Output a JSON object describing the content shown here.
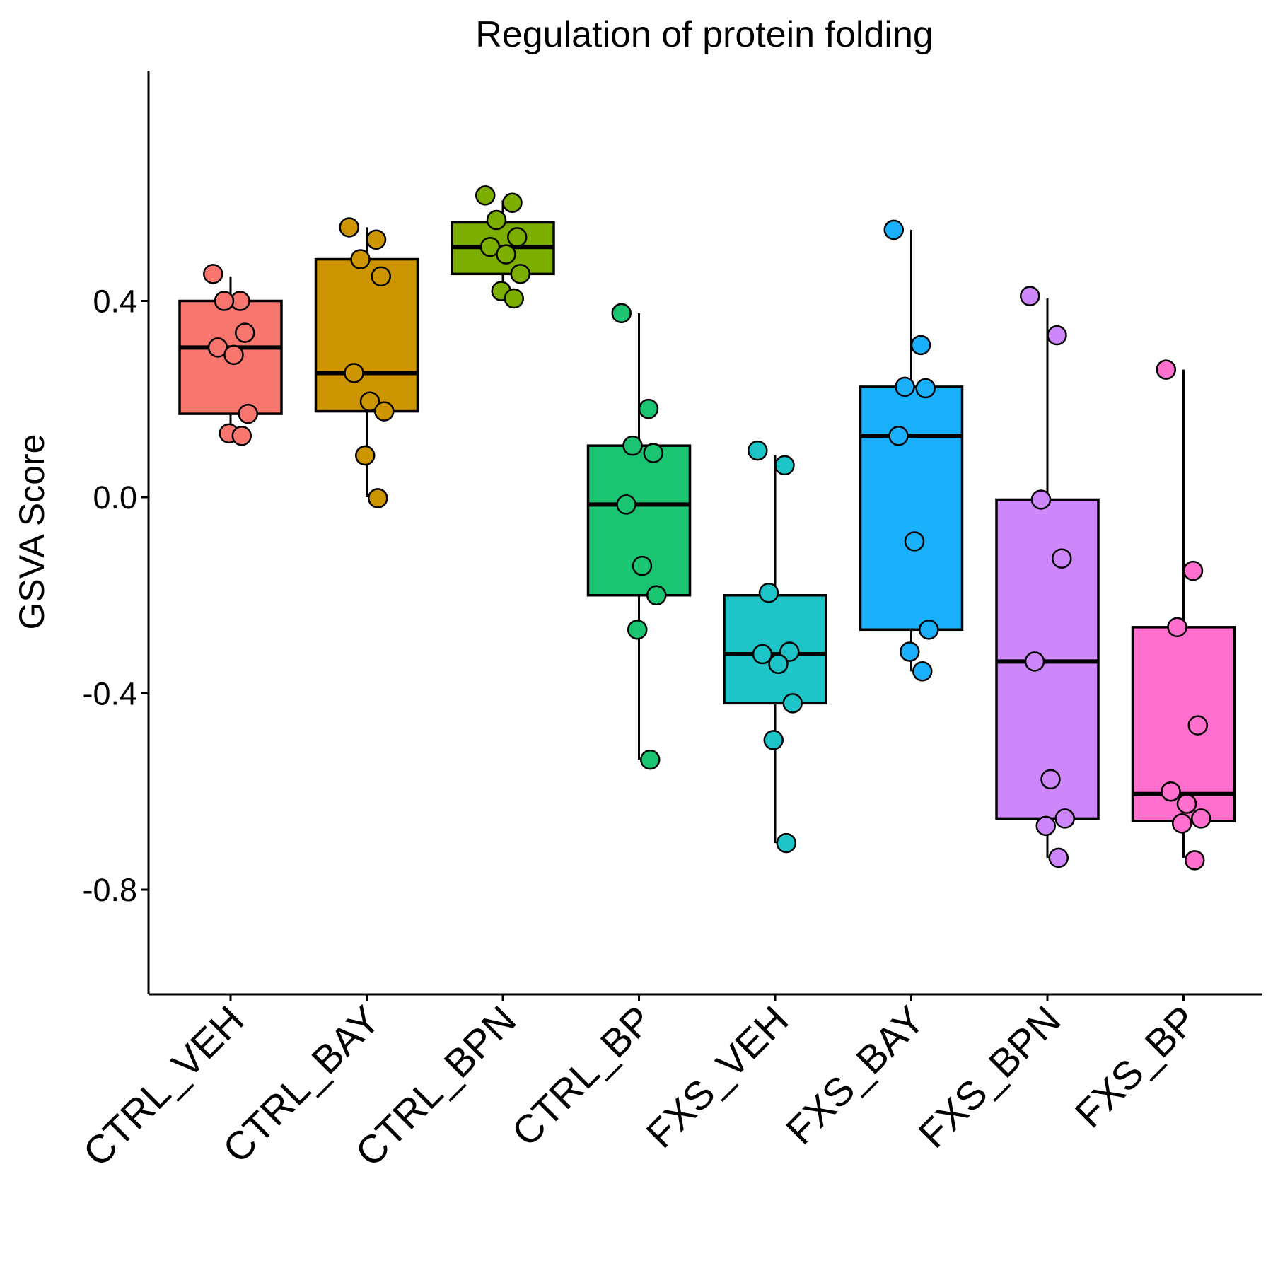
{
  "chart_data": {
    "type": "box",
    "title": "Regulation of protein folding",
    "xlabel": "",
    "ylabel": "GSVA Score",
    "ylim": [
      -0.8,
      0.68
    ],
    "yticks": [
      {
        "value": -0.8,
        "label": "-0.8"
      },
      {
        "value": -0.4,
        "label": "-0.4"
      },
      {
        "value": 0.0,
        "label": "0.0"
      },
      {
        "value": 0.4,
        "label": "0.4"
      }
    ],
    "grid": false,
    "legend": "none",
    "groups": [
      {
        "name": "CTRL_VEH",
        "color": "#F8766D",
        "q1": 0.17,
        "median": 0.305,
        "q3": 0.4,
        "whisker_low": 0.13,
        "whisker_high": 0.45,
        "points": [
          0.455,
          0.4,
          0.4,
          0.335,
          0.305,
          0.29,
          0.17,
          0.13,
          0.125
        ]
      },
      {
        "name": "CTRL_BAY",
        "color": "#CD9600",
        "q1": 0.175,
        "median": 0.253,
        "q3": 0.485,
        "whisker_low": 0.0,
        "whisker_high": 0.55,
        "points": [
          0.55,
          0.525,
          0.485,
          0.45,
          0.253,
          0.195,
          0.175,
          0.085,
          -0.002
        ]
      },
      {
        "name": "CTRL_BPN",
        "color": "#7CAE00",
        "q1": 0.455,
        "median": 0.51,
        "q3": 0.56,
        "whisker_low": 0.405,
        "whisker_high": 0.605,
        "points": [
          0.615,
          0.6,
          0.565,
          0.53,
          0.51,
          0.495,
          0.455,
          0.42,
          0.405
        ]
      },
      {
        "name": "CTRL_BP",
        "color": "#1BC470",
        "q1": -0.2,
        "median": -0.015,
        "q3": 0.105,
        "whisker_low": -0.535,
        "whisker_high": 0.375,
        "points": [
          0.375,
          0.18,
          0.105,
          0.09,
          -0.015,
          -0.14,
          -0.2,
          -0.27,
          -0.535
        ]
      },
      {
        "name": "FXS_VEH",
        "color": "#1DC4C8",
        "q1": -0.42,
        "median": -0.32,
        "q3": -0.2,
        "whisker_low": -0.705,
        "whisker_high": 0.085,
        "points": [
          0.095,
          0.065,
          -0.195,
          -0.315,
          -0.32,
          -0.34,
          -0.42,
          -0.495,
          -0.705
        ]
      },
      {
        "name": "FXS_BAY",
        "color": "#1AB0FC",
        "q1": -0.27,
        "median": 0.125,
        "q3": 0.225,
        "whisker_low": -0.355,
        "whisker_high": 0.545,
        "points": [
          0.545,
          0.31,
          0.225,
          0.222,
          0.125,
          -0.09,
          -0.27,
          -0.315,
          -0.355
        ]
      },
      {
        "name": "FXS_BPN",
        "color": "#CD87FA",
        "q1": -0.655,
        "median": -0.335,
        "q3": -0.005,
        "whisker_low": -0.735,
        "whisker_high": 0.405,
        "points": [
          0.41,
          0.33,
          -0.005,
          -0.125,
          -0.335,
          -0.575,
          -0.655,
          -0.67,
          -0.735
        ]
      },
      {
        "name": "FXS_BP",
        "color": "#FF6FCE",
        "q1": -0.66,
        "median": -0.605,
        "q3": -0.265,
        "whisker_low": -0.735,
        "whisker_high": 0.26,
        "points": [
          0.26,
          -0.15,
          -0.265,
          -0.465,
          -0.6,
          -0.625,
          -0.655,
          -0.665,
          -0.74
        ]
      }
    ]
  }
}
